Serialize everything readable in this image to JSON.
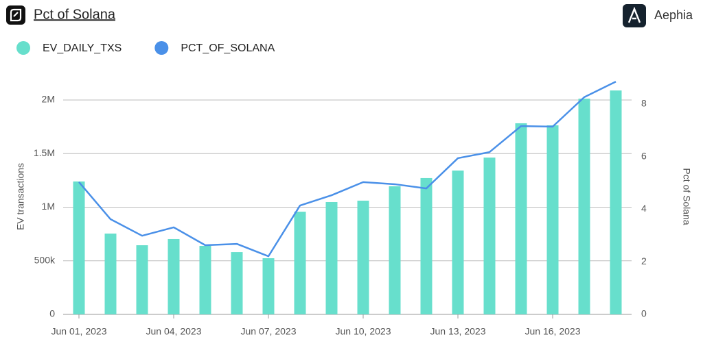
{
  "header": {
    "title": "Pct of Solana",
    "brand": "Aephia"
  },
  "chart_data": {
    "type": "bar-line",
    "categories": [
      "Jun 01, 2023",
      null,
      null,
      "Jun 04, 2023",
      null,
      null,
      "Jun 07, 2023",
      null,
      null,
      "Jun 10, 2023",
      null,
      null,
      "Jun 13, 2023",
      null,
      null,
      "Jun 16, 2023",
      null,
      null
    ],
    "series": [
      {
        "name": "EV_DAILY_TXS",
        "type": "bar",
        "color": "#67dfcc",
        "values": [
          1240000,
          754000,
          645000,
          703000,
          639000,
          581000,
          524000,
          958000,
          1048000,
          1061000,
          1195000,
          1272000,
          1342000,
          1463000,
          1783000,
          1764000,
          2013000,
          2089000
        ]
      },
      {
        "name": "PCT_OF_SOLANA",
        "type": "line",
        "axis": "y2",
        "color": "#4a90e8",
        "values": [
          5.03,
          3.62,
          2.99,
          3.31,
          2.63,
          2.68,
          2.21,
          4.14,
          4.53,
          5.03,
          4.95,
          4.79,
          5.94,
          6.17,
          7.16,
          7.14,
          8.26,
          8.85
        ]
      }
    ],
    "y_label": "EV transactions",
    "y2_label": "Pct of Solana",
    "ylim": [
      0,
      2294000
    ],
    "yticks": [
      0,
      {
        "value": 500000,
        "label": "500k"
      },
      {
        "value": 1000000,
        "label": "1M"
      },
      {
        "value": 1500000,
        "label": "1.5M"
      },
      {
        "value": 2000000,
        "label": "2M"
      }
    ],
    "y2lim": [
      0,
      9.35
    ],
    "y2ticks": [
      0,
      2,
      4,
      6,
      8
    ],
    "grid": true
  }
}
